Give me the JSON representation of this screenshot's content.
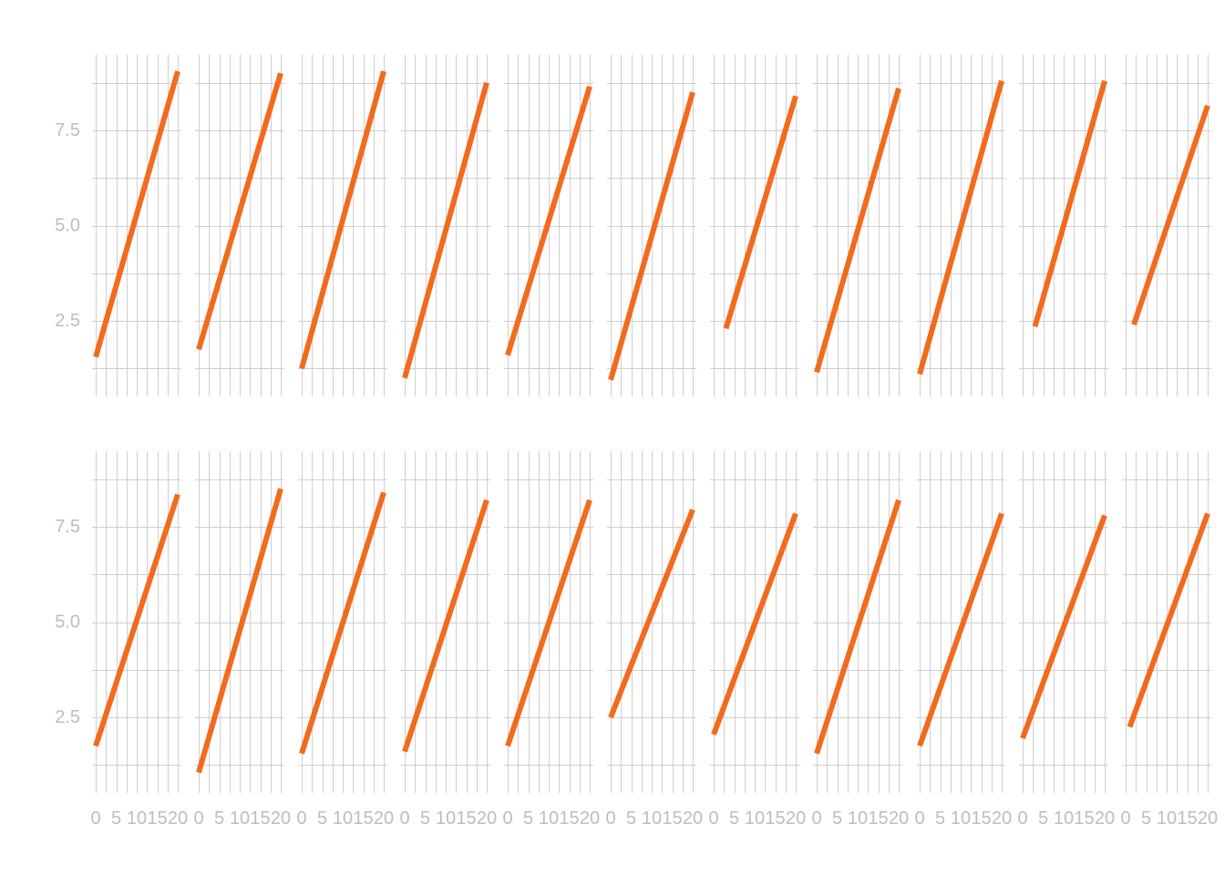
{
  "chart_data": {
    "type": "line",
    "layout": "small-multiples",
    "grid": true,
    "legend": "none",
    "xlim": [
      0,
      20
    ],
    "ylim": [
      0.4,
      9.5
    ],
    "x_ticks": [
      0,
      5,
      10,
      15,
      20
    ],
    "x_tick_labels": [
      "0",
      "5",
      "10",
      "15",
      "20"
    ],
    "y_ticks": [
      2.5,
      5.0,
      7.5
    ],
    "y_tick_labels": [
      "2.5",
      "5.0",
      "7.5"
    ],
    "colors": {
      "line": "#f26b1d",
      "grid": "#cfcfcf",
      "tick_text": "#bdbdbd"
    },
    "rows": [
      {
        "panels": [
          {
            "x": [
              0,
              20
            ],
            "y": [
              1.55,
              9.05
            ]
          },
          {
            "x": [
              0,
              20
            ],
            "y": [
              1.75,
              9.0
            ]
          },
          {
            "x": [
              0,
              20
            ],
            "y": [
              1.25,
              9.05
            ]
          },
          {
            "x": [
              0,
              20
            ],
            "y": [
              1.0,
              8.75
            ]
          },
          {
            "x": [
              0,
              20
            ],
            "y": [
              1.6,
              8.65
            ]
          },
          {
            "x": [
              0,
              20
            ],
            "y": [
              0.95,
              8.5
            ]
          },
          {
            "x": [
              3,
              20
            ],
            "y": [
              2.3,
              8.4
            ]
          },
          {
            "x": [
              0,
              20
            ],
            "y": [
              1.15,
              8.6
            ]
          },
          {
            "x": [
              0,
              20
            ],
            "y": [
              1.1,
              8.8
            ]
          },
          {
            "x": [
              3,
              20
            ],
            "y": [
              2.35,
              8.8
            ]
          },
          {
            "x": [
              2,
              20
            ],
            "y": [
              2.4,
              8.15
            ]
          }
        ]
      },
      {
        "panels": [
          {
            "x": [
              0,
              20
            ],
            "y": [
              1.75,
              8.35
            ]
          },
          {
            "x": [
              0,
              20
            ],
            "y": [
              1.05,
              8.5
            ]
          },
          {
            "x": [
              0,
              20
            ],
            "y": [
              1.55,
              8.4
            ]
          },
          {
            "x": [
              0,
              20
            ],
            "y": [
              1.6,
              8.2
            ]
          },
          {
            "x": [
              0,
              20
            ],
            "y": [
              1.75,
              8.2
            ]
          },
          {
            "x": [
              0,
              20
            ],
            "y": [
              2.5,
              7.95
            ]
          },
          {
            "x": [
              0,
              20
            ],
            "y": [
              2.05,
              7.85
            ]
          },
          {
            "x": [
              0,
              20
            ],
            "y": [
              1.55,
              8.2
            ]
          },
          {
            "x": [
              0,
              20
            ],
            "y": [
              1.75,
              7.85
            ]
          },
          {
            "x": [
              0,
              20
            ],
            "y": [
              1.95,
              7.8
            ]
          },
          {
            "x": [
              1,
              20
            ],
            "y": [
              2.25,
              7.85
            ]
          }
        ]
      }
    ]
  }
}
